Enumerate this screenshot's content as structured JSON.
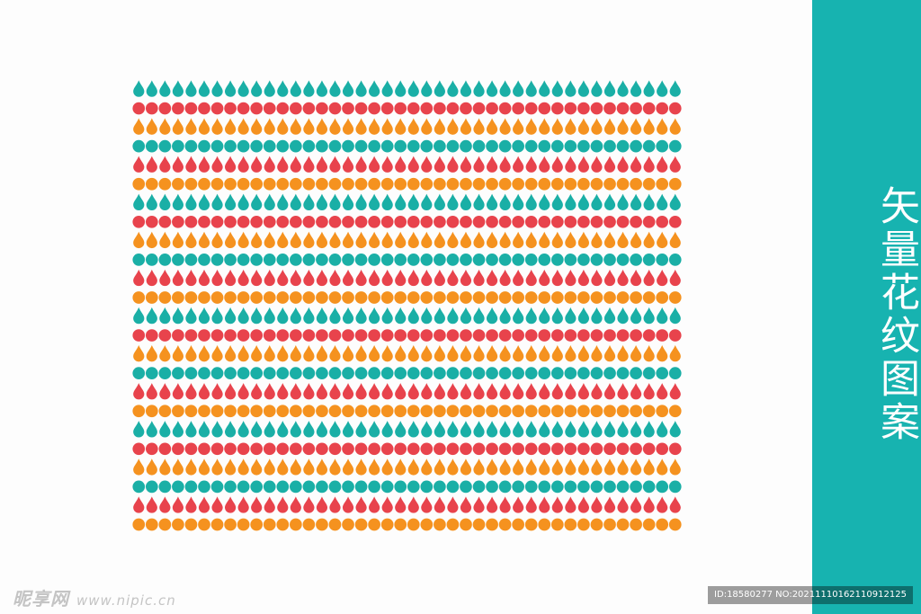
{
  "title": "矢量花纹图案",
  "colors": {
    "teal": "#1aafa6",
    "red": "#e8434c",
    "orange": "#f5921f",
    "panel": "#17b3b0",
    "background": "#fdfdfd"
  },
  "pattern": {
    "motifs_per_row": 42,
    "rows": [
      {
        "shape": "drop",
        "color": "teal"
      },
      {
        "shape": "circle",
        "color": "red"
      },
      {
        "shape": "drop",
        "color": "orange"
      },
      {
        "shape": "circle",
        "color": "teal"
      },
      {
        "shape": "drop",
        "color": "red"
      },
      {
        "shape": "circle",
        "color": "orange"
      },
      {
        "shape": "drop",
        "color": "teal"
      },
      {
        "shape": "circle",
        "color": "red"
      },
      {
        "shape": "drop",
        "color": "orange"
      },
      {
        "shape": "circle",
        "color": "teal"
      },
      {
        "shape": "drop",
        "color": "red"
      },
      {
        "shape": "circle",
        "color": "orange"
      },
      {
        "shape": "drop",
        "color": "teal"
      },
      {
        "shape": "circle",
        "color": "red"
      },
      {
        "shape": "drop",
        "color": "orange"
      },
      {
        "shape": "circle",
        "color": "teal"
      },
      {
        "shape": "drop",
        "color": "red"
      },
      {
        "shape": "circle",
        "color": "orange"
      },
      {
        "shape": "drop",
        "color": "teal"
      },
      {
        "shape": "circle",
        "color": "red"
      },
      {
        "shape": "drop",
        "color": "orange"
      },
      {
        "shape": "circle",
        "color": "teal"
      },
      {
        "shape": "drop",
        "color": "red"
      },
      {
        "shape": "circle",
        "color": "orange"
      }
    ]
  },
  "watermark_left": {
    "brand": "昵享网",
    "url": "www.nipic.cn"
  },
  "watermark_right": "ID:18580277 NO:20211110162110912125"
}
